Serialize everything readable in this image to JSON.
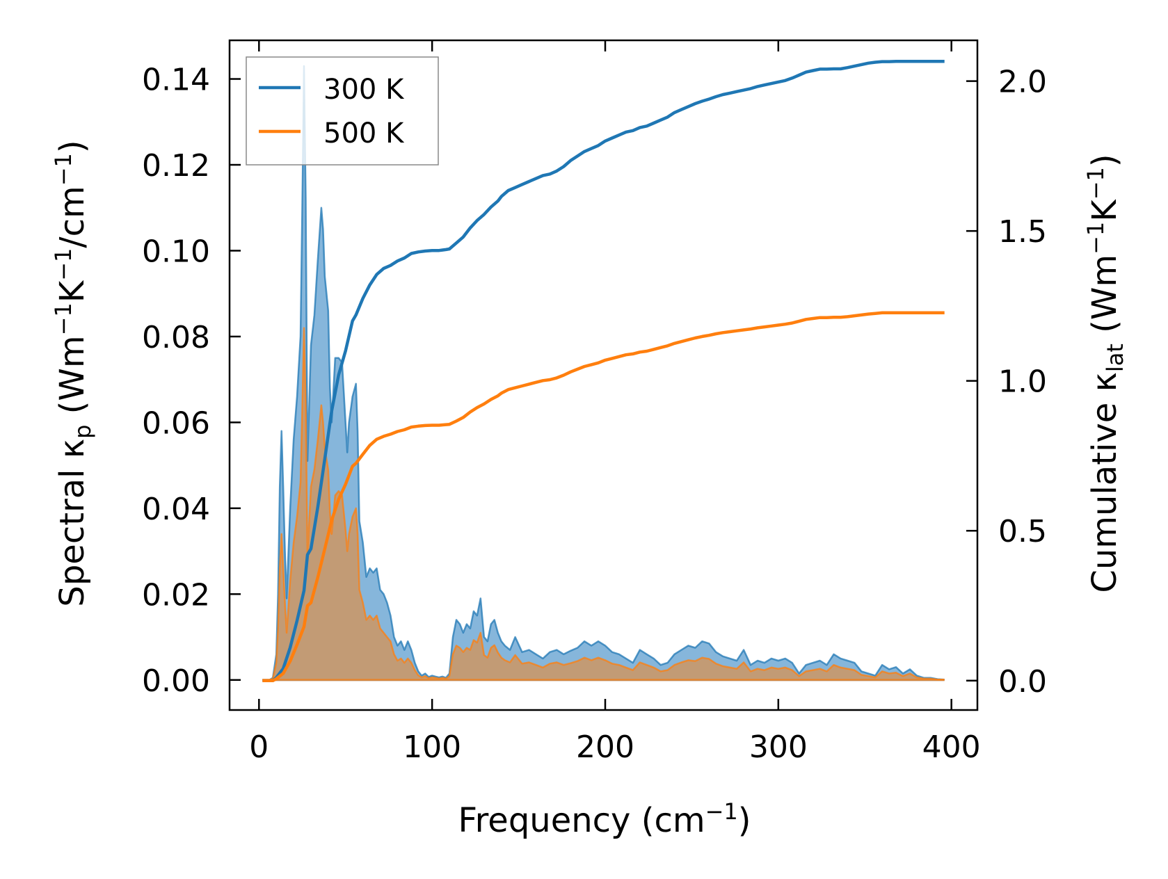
{
  "chart_data": {
    "type": "line",
    "x_label": "Frequency",
    "x_label_unit": "(cm",
    "x_label_unit_sup": "−1",
    "x_label_unit_end": ")",
    "y_label_left": {
      "main": "Spectral κ",
      "sub": "p",
      "unit_a": " (Wm",
      "sup1": "−1",
      "unit_b": "K",
      "sup2": "−1",
      "unit_c": "/cm",
      "sup3": "−1",
      "unit_d": ")"
    },
    "y_label_right": {
      "main": "Cumulative κ",
      "sub": "lat",
      "unit_a": " (Wm",
      "sup1": "−1",
      "unit_b": "K",
      "sup2": "−1",
      "unit_d": ")"
    },
    "xlim": [
      -17,
      415
    ],
    "ylim_left": [
      -0.007,
      0.149
    ],
    "ylim_right": [
      -0.098,
      2.136
    ],
    "x_ticks": [
      0,
      100,
      200,
      300,
      400
    ],
    "x_tick_labels": [
      "0",
      "100",
      "200",
      "300",
      "400"
    ],
    "y_left_ticks": [
      0.0,
      0.02,
      0.04,
      0.06,
      0.08,
      0.1,
      0.12,
      0.14
    ],
    "y_left_tick_labels": [
      "0.00",
      "0.02",
      "0.04",
      "0.06",
      "0.08",
      "0.10",
      "0.12",
      "0.14"
    ],
    "y_right_ticks": [
      0.0,
      0.5,
      1.0,
      1.5,
      2.0
    ],
    "y_right_tick_labels": [
      "0.0",
      "0.5",
      "1.0",
      "1.5",
      "2.0"
    ],
    "legend": {
      "position": "top-left",
      "entries": [
        "300 K",
        "500 K"
      ]
    },
    "colors": {
      "s300": "#1f77b4",
      "s500": "#ff7f0e",
      "fill300": "#7fb2d9",
      "fill500": "#c8996d"
    },
    "series": [
      {
        "name": "300 K",
        "spectral": {
          "x": [
            2,
            6,
            8,
            10,
            11,
            12,
            13,
            14,
            15,
            16,
            18,
            20,
            22,
            24,
            25,
            26,
            27,
            28,
            30,
            32,
            34,
            36,
            37,
            38,
            40,
            41,
            42,
            44,
            46,
            48,
            50,
            51,
            52,
            54,
            56,
            57,
            58,
            60,
            62,
            64,
            66,
            68,
            70,
            72,
            74,
            76,
            78,
            80,
            82,
            84,
            86,
            88,
            90,
            92,
            94,
            96,
            98,
            100,
            102,
            104,
            106,
            108,
            110,
            112,
            114,
            116,
            118,
            120,
            122,
            124,
            126,
            128,
            130,
            132,
            134,
            136,
            138,
            140,
            142,
            145,
            148,
            152,
            156,
            160,
            164,
            168,
            172,
            176,
            180,
            184,
            188,
            190,
            192,
            196,
            200,
            204,
            208,
            212,
            216,
            220,
            224,
            228,
            232,
            236,
            240,
            244,
            248,
            252,
            256,
            260,
            264,
            268,
            272,
            276,
            280,
            284,
            288,
            292,
            296,
            300,
            304,
            308,
            312,
            316,
            320,
            324,
            328,
            332,
            336,
            340,
            344,
            348,
            352,
            356,
            360,
            364,
            368,
            372,
            376,
            380,
            384,
            388,
            392,
            396
          ],
          "y": [
            0,
            0,
            0.0005,
            0.006,
            0.02,
            0.045,
            0.058,
            0.045,
            0.03,
            0.019,
            0.04,
            0.056,
            0.066,
            0.08,
            0.11,
            0.143,
            0.112,
            0.051,
            0.078,
            0.085,
            0.098,
            0.11,
            0.105,
            0.094,
            0.086,
            0.068,
            0.06,
            0.075,
            0.075,
            0.074,
            0.06,
            0.053,
            0.06,
            0.066,
            0.069,
            0.058,
            0.037,
            0.032,
            0.024,
            0.026,
            0.025,
            0.026,
            0.021,
            0.02,
            0.018,
            0.015,
            0.01,
            0.008,
            0.009,
            0.007,
            0.009,
            0.007,
            0.004,
            0.002,
            0.001,
            0.0015,
            0.0007,
            0.001,
            0.0008,
            0.0006,
            0.0008,
            0.0005,
            0.0015,
            0.01,
            0.014,
            0.013,
            0.011,
            0.013,
            0.012,
            0.016,
            0.015,
            0.019,
            0.01,
            0.009,
            0.013,
            0.014,
            0.011,
            0.009,
            0.008,
            0.007,
            0.01,
            0.0065,
            0.007,
            0.006,
            0.005,
            0.0065,
            0.007,
            0.006,
            0.0068,
            0.0075,
            0.009,
            0.0085,
            0.008,
            0.009,
            0.008,
            0.0065,
            0.006,
            0.005,
            0.004,
            0.007,
            0.006,
            0.005,
            0.0035,
            0.004,
            0.006,
            0.007,
            0.008,
            0.0075,
            0.009,
            0.0085,
            0.0065,
            0.0055,
            0.005,
            0.0045,
            0.007,
            0.0035,
            0.0045,
            0.004,
            0.005,
            0.0045,
            0.005,
            0.004,
            0.0015,
            0.0035,
            0.004,
            0.0045,
            0.0035,
            0.006,
            0.005,
            0.0045,
            0.004,
            0.002,
            0.0015,
            0.001,
            0.0035,
            0.0025,
            0.003,
            0.0015,
            0.0025,
            0.001,
            0.0005,
            0.0005,
            0.0002,
            0.0001
          ]
        },
        "cumulative": {
          "x": [
            2,
            6,
            8,
            10,
            14,
            18,
            22,
            26,
            28,
            30,
            34,
            38,
            42,
            46,
            50,
            54,
            56,
            60,
            64,
            68,
            72,
            76,
            80,
            84,
            88,
            92,
            96,
            100,
            104,
            108,
            110,
            114,
            118,
            122,
            126,
            130,
            134,
            138,
            140,
            144,
            148,
            152,
            156,
            160,
            164,
            168,
            172,
            176,
            180,
            184,
            188,
            192,
            196,
            200,
            204,
            208,
            212,
            216,
            220,
            224,
            228,
            232,
            236,
            240,
            244,
            248,
            252,
            256,
            260,
            264,
            268,
            272,
            276,
            280,
            284,
            288,
            292,
            296,
            300,
            304,
            308,
            312,
            316,
            320,
            324,
            328,
            332,
            336,
            340,
            344,
            348,
            352,
            356,
            360,
            364,
            368,
            372,
            376,
            380,
            384,
            388,
            392,
            396
          ],
          "y": [
            0,
            0,
            0.0,
            0.01,
            0.04,
            0.11,
            0.2,
            0.3,
            0.42,
            0.44,
            0.58,
            0.74,
            0.9,
            1.02,
            1.1,
            1.2,
            1.22,
            1.275,
            1.32,
            1.355,
            1.375,
            1.385,
            1.4,
            1.41,
            1.425,
            1.43,
            1.433,
            1.435,
            1.435,
            1.438,
            1.44,
            1.46,
            1.48,
            1.51,
            1.535,
            1.555,
            1.58,
            1.6,
            1.615,
            1.635,
            1.645,
            1.655,
            1.665,
            1.675,
            1.685,
            1.69,
            1.7,
            1.715,
            1.735,
            1.75,
            1.765,
            1.775,
            1.785,
            1.8,
            1.81,
            1.82,
            1.83,
            1.835,
            1.845,
            1.85,
            1.86,
            1.87,
            1.88,
            1.895,
            1.905,
            1.915,
            1.925,
            1.933,
            1.94,
            1.948,
            1.955,
            1.96,
            1.965,
            1.97,
            1.975,
            1.982,
            1.987,
            1.992,
            1.997,
            2.002,
            2.01,
            2.02,
            2.03,
            2.035,
            2.04,
            2.04,
            2.041,
            2.041,
            2.045,
            2.05,
            2.055,
            2.06,
            2.063,
            2.065,
            2.065,
            2.066,
            2.066,
            2.066,
            2.066,
            2.066,
            2.066,
            2.066,
            2.066
          ]
        }
      },
      {
        "name": "500 K",
        "spectral": {
          "x": [
            2,
            6,
            8,
            10,
            11,
            12,
            13,
            14,
            15,
            16,
            18,
            20,
            22,
            24,
            25,
            26,
            27,
            28,
            30,
            32,
            34,
            36,
            37,
            38,
            40,
            41,
            42,
            44,
            46,
            48,
            50,
            51,
            52,
            54,
            56,
            57,
            58,
            60,
            62,
            64,
            66,
            68,
            70,
            72,
            74,
            76,
            78,
            80,
            82,
            84,
            86,
            88,
            90,
            92,
            94,
            96,
            98,
            100,
            102,
            104,
            106,
            108,
            110,
            112,
            114,
            116,
            118,
            120,
            122,
            124,
            126,
            128,
            130,
            132,
            134,
            136,
            138,
            140,
            142,
            145,
            148,
            152,
            156,
            160,
            164,
            168,
            172,
            176,
            180,
            184,
            188,
            190,
            192,
            196,
            200,
            204,
            208,
            212,
            216,
            220,
            224,
            228,
            232,
            236,
            240,
            244,
            248,
            252,
            256,
            260,
            264,
            268,
            272,
            276,
            280,
            284,
            288,
            292,
            296,
            300,
            304,
            308,
            312,
            316,
            320,
            324,
            328,
            332,
            336,
            340,
            344,
            348,
            352,
            356,
            360,
            364,
            368,
            372,
            376,
            380,
            384,
            388,
            392,
            396
          ],
          "y": [
            0,
            0,
            0.0003,
            0.004,
            0.012,
            0.026,
            0.034,
            0.026,
            0.018,
            0.011,
            0.023,
            0.032,
            0.038,
            0.046,
            0.063,
            0.082,
            0.064,
            0.029,
            0.045,
            0.049,
            0.056,
            0.064,
            0.06,
            0.054,
            0.049,
            0.039,
            0.034,
            0.043,
            0.044,
            0.043,
            0.035,
            0.03,
            0.034,
            0.038,
            0.04,
            0.034,
            0.021,
            0.018,
            0.014,
            0.015,
            0.014,
            0.015,
            0.012,
            0.011,
            0.01,
            0.009,
            0.006,
            0.0045,
            0.005,
            0.004,
            0.005,
            0.004,
            0.0023,
            0.0011,
            0.0006,
            0.0009,
            0.0004,
            0.0006,
            0.0005,
            0.0003,
            0.0005,
            0.0003,
            0.0009,
            0.006,
            0.008,
            0.0075,
            0.0065,
            0.0075,
            0.007,
            0.0093,
            0.0087,
            0.011,
            0.0058,
            0.0052,
            0.0075,
            0.0081,
            0.0064,
            0.0052,
            0.0046,
            0.0041,
            0.0058,
            0.0038,
            0.0041,
            0.0035,
            0.0029,
            0.0038,
            0.0041,
            0.0035,
            0.0039,
            0.0044,
            0.0052,
            0.0049,
            0.0046,
            0.0052,
            0.0046,
            0.0038,
            0.0035,
            0.0029,
            0.0023,
            0.0041,
            0.0035,
            0.0029,
            0.002,
            0.0023,
            0.0035,
            0.0041,
            0.0046,
            0.0044,
            0.0052,
            0.0049,
            0.0038,
            0.0032,
            0.0029,
            0.0026,
            0.0041,
            0.002,
            0.0026,
            0.0023,
            0.0029,
            0.0026,
            0.0029,
            0.0023,
            0.0009,
            0.002,
            0.0023,
            0.0026,
            0.002,
            0.0035,
            0.0029,
            0.0026,
            0.0023,
            0.0012,
            0.0009,
            0.0006,
            0.002,
            0.0015,
            0.0017,
            0.0009,
            0.0015,
            0.0006,
            0.0003,
            0.0003,
            0.0001,
            0.0001
          ]
        },
        "cumulative": {
          "x": [
            2,
            6,
            8,
            10,
            14,
            18,
            22,
            26,
            28,
            30,
            34,
            38,
            42,
            46,
            50,
            54,
            56,
            60,
            64,
            68,
            72,
            76,
            80,
            84,
            88,
            92,
            96,
            100,
            104,
            108,
            110,
            114,
            118,
            122,
            126,
            130,
            134,
            138,
            140,
            144,
            148,
            152,
            156,
            160,
            164,
            168,
            172,
            176,
            180,
            184,
            188,
            192,
            196,
            200,
            204,
            208,
            212,
            216,
            220,
            224,
            228,
            232,
            236,
            240,
            244,
            248,
            252,
            256,
            260,
            264,
            268,
            272,
            276,
            280,
            284,
            288,
            292,
            296,
            300,
            304,
            308,
            312,
            316,
            320,
            324,
            328,
            332,
            336,
            340,
            344,
            348,
            352,
            356,
            360,
            364,
            368,
            372,
            376,
            380,
            384,
            388,
            392,
            396
          ],
          "y": [
            0,
            0,
            0.0,
            0.006,
            0.024,
            0.065,
            0.12,
            0.18,
            0.25,
            0.26,
            0.345,
            0.44,
            0.535,
            0.605,
            0.655,
            0.715,
            0.725,
            0.755,
            0.785,
            0.805,
            0.815,
            0.822,
            0.831,
            0.837,
            0.846,
            0.849,
            0.851,
            0.852,
            0.852,
            0.854,
            0.855,
            0.866,
            0.878,
            0.896,
            0.911,
            0.923,
            0.938,
            0.95,
            0.959,
            0.971,
            0.977,
            0.983,
            0.989,
            0.995,
            1.001,
            1.004,
            1.01,
            1.019,
            1.03,
            1.039,
            1.048,
            1.054,
            1.06,
            1.069,
            1.075,
            1.081,
            1.087,
            1.09,
            1.096,
            1.099,
            1.105,
            1.111,
            1.117,
            1.125,
            1.131,
            1.137,
            1.143,
            1.148,
            1.152,
            1.157,
            1.161,
            1.164,
            1.167,
            1.17,
            1.173,
            1.177,
            1.18,
            1.183,
            1.186,
            1.189,
            1.193,
            1.199,
            1.205,
            1.208,
            1.211,
            1.211,
            1.212,
            1.212,
            1.214,
            1.217,
            1.22,
            1.223,
            1.225,
            1.227,
            1.227,
            1.227,
            1.227,
            1.227,
            1.227,
            1.227,
            1.227,
            1.227,
            1.227
          ]
        }
      }
    ]
  }
}
